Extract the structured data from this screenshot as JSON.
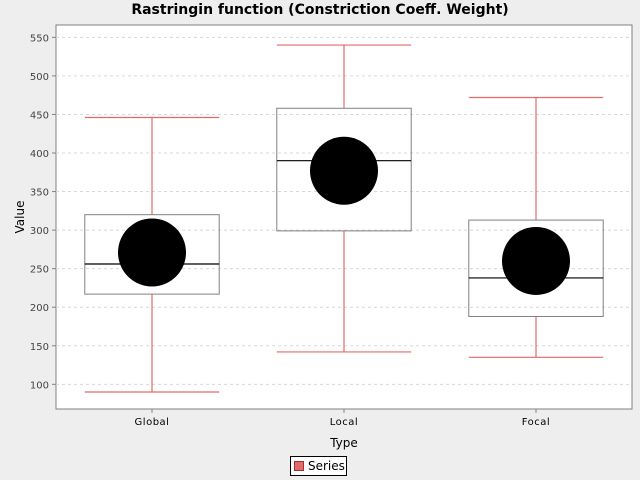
{
  "chart_data": {
    "type": "box",
    "title": "Rastringin function (Constriction Coeff. Weight)",
    "xlabel": "Type",
    "ylabel": "Value",
    "ylim": [
      68,
      566
    ],
    "yticks": [
      100,
      150,
      200,
      250,
      300,
      350,
      400,
      450,
      500,
      550
    ],
    "grid": true,
    "legend_position": "bottom",
    "colors": {
      "whisker": "#e46969",
      "box": "#808080",
      "median": "#000000",
      "mean": "#000000",
      "plot_bg": "#ffffff",
      "grid": "#d8d8d8"
    },
    "series": [
      {
        "name": "Series",
        "boxes": [
          {
            "category": "Global",
            "min": 90,
            "q1": 217,
            "median": 256,
            "q3": 320,
            "max": 446,
            "mean": 271
          },
          {
            "category": "Local",
            "min": 142,
            "q1": 299,
            "median": 390,
            "q3": 458,
            "max": 540,
            "mean": 377
          },
          {
            "category": "Focal",
            "min": 135,
            "q1": 188,
            "median": 238,
            "q3": 313,
            "max": 472,
            "mean": 260
          }
        ]
      }
    ]
  }
}
